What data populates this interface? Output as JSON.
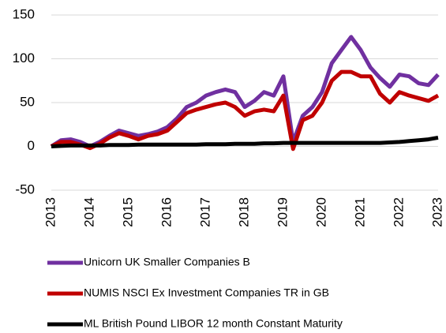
{
  "chart_data": {
    "type": "line",
    "x": [
      2013,
      2013.25,
      2013.5,
      2013.75,
      2014,
      2014.25,
      2014.5,
      2014.75,
      2015,
      2015.25,
      2015.5,
      2015.75,
      2016,
      2016.25,
      2016.5,
      2016.75,
      2017,
      2017.25,
      2017.5,
      2017.75,
      2018,
      2018.25,
      2018.5,
      2018.75,
      2019,
      2019.25,
      2019.5,
      2019.75,
      2020,
      2020.25,
      2020.5,
      2020.75,
      2021,
      2021.25,
      2021.5,
      2021.75,
      2022,
      2022.25,
      2022.5,
      2022.75,
      2023
    ],
    "series": [
      {
        "name": "Unicorn UK Smaller Companies B",
        "color": "#7030a0",
        "values": [
          0,
          7,
          8,
          5,
          0,
          5,
          12,
          18,
          15,
          12,
          14,
          17,
          22,
          32,
          45,
          50,
          58,
          62,
          65,
          62,
          45,
          52,
          62,
          58,
          80,
          5,
          35,
          45,
          62,
          95,
          110,
          125,
          110,
          90,
          78,
          68,
          82,
          80,
          72,
          70,
          82
        ]
      },
      {
        "name": "NUMIS NSCI Ex Investment Companies TR in GB",
        "color": "#c00000",
        "values": [
          0,
          5,
          5,
          2,
          -2,
          3,
          10,
          15,
          12,
          8,
          12,
          14,
          18,
          28,
          38,
          42,
          45,
          48,
          50,
          45,
          35,
          40,
          42,
          40,
          58,
          -3,
          30,
          35,
          50,
          75,
          85,
          85,
          80,
          80,
          60,
          50,
          62,
          58,
          55,
          52,
          58
        ]
      },
      {
        "name": "ML British Pound LIBOR 12 month Constant Maturity",
        "color": "#000000",
        "values": [
          0,
          0.5,
          1,
          1,
          1,
          1,
          1.5,
          1.5,
          1.5,
          2,
          2,
          2,
          2,
          2,
          2,
          2,
          2.5,
          2.5,
          2.5,
          3,
          3,
          3,
          3.5,
          3.5,
          4,
          4,
          4,
          4,
          4,
          4,
          4,
          4,
          4,
          4,
          4,
          4.5,
          5,
          6,
          7,
          8,
          10
        ]
      }
    ],
    "xlim": [
      2013,
      2023
    ],
    "xticks": [
      2013,
      2014,
      2015,
      2016,
      2017,
      2018,
      2019,
      2020,
      2021,
      2022,
      2023
    ],
    "ylim": [
      -50,
      150
    ],
    "yticks": [
      -50,
      0,
      50,
      100,
      150
    ],
    "grid": true
  }
}
